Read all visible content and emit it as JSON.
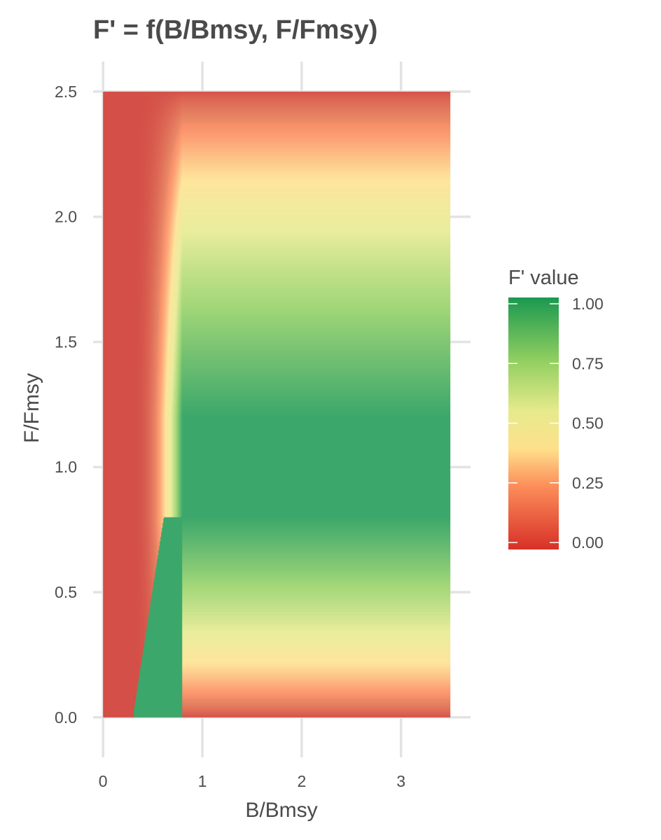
{
  "chart_data": {
    "type": "heatmap",
    "title": "F' = f(B/Bmsy, F/Fmsy)",
    "xlabel": "B/Bmsy",
    "ylabel": "F/Fmsy",
    "xlim": [
      -0.1,
      3.7
    ],
    "ylim": [
      -0.16,
      2.62
    ],
    "x_range": [
      0,
      3.5
    ],
    "y_range": [
      0,
      2.5
    ],
    "xticks": [
      0,
      1,
      2,
      3
    ],
    "xtick_labels": [
      "0",
      "1",
      "2",
      "3"
    ],
    "yticks": [
      0,
      0.5,
      1,
      1.5,
      2,
      2.5
    ],
    "ytick_labels": [
      "0.0",
      "0.5",
      "1.0",
      "1.5",
      "2.0",
      "2.5"
    ],
    "grid": true,
    "model": {
      "bmsy_breakpoint": 0.8,
      "bmsy_floor": 0.3,
      "full_value_band": [
        0.8,
        1.2
      ],
      "zero_value_at_f": [
        0,
        2.5
      ]
    },
    "legend": {
      "title": "F' value",
      "position": "right",
      "ticks": [
        0,
        0.25,
        0.5,
        0.75,
        1.0
      ],
      "tick_labels": [
        "0.00",
        "0.25",
        "0.50",
        "0.75",
        "1.00"
      ],
      "colorscale": [
        {
          "value": 0.0,
          "color": "#d73027"
        },
        {
          "value": 0.25,
          "color": "#fc8d59"
        },
        {
          "value": 0.4,
          "color": "#fee08b"
        },
        {
          "value": 0.55,
          "color": "#e6ea8c"
        },
        {
          "value": 0.75,
          "color": "#91cf60"
        },
        {
          "value": 1.0,
          "color": "#1a9850"
        }
      ]
    }
  }
}
